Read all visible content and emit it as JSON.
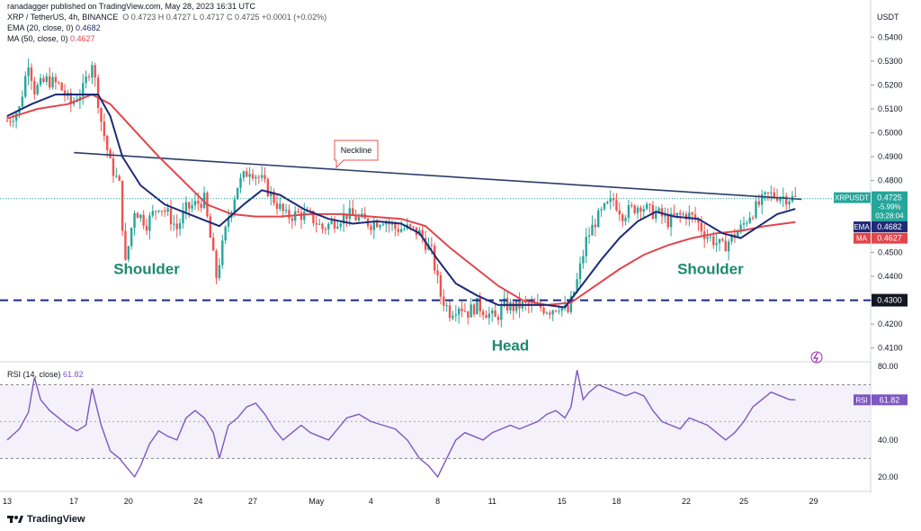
{
  "header": {
    "published": "ranadagger published on TradingView.com, May 28, 2023 16:31 UTC",
    "symbol_line": "XRP / TetherUS, 4h, BINANCE",
    "ohlc": "O 0.4723  H 0.4727  L 0.4717  C 0.4725  +0.0001 (+0.02%)",
    "ema_label": "EMA (20, close, 0)",
    "ema_value": "0.4682",
    "ma_label": "MA (50, close, 0)",
    "ma_value": "0.4627",
    "rsi_label": "RSI (14, close)",
    "rsi_value": "61.82",
    "currency": "USDT"
  },
  "footer": {
    "brand": "TradingView"
  },
  "colors": {
    "up": "#26a69a",
    "down": "#ef5350",
    "ema": "#1e2a78",
    "ma": "#e0464b",
    "rsi": "#7e57c2",
    "neckline": "#2a3d6b",
    "support": "#1a2b80"
  },
  "chart_data": [
    {
      "type": "candlestick",
      "title": "XRP / TetherUS, 4h, BINANCE",
      "ylim": [
        0.405,
        0.548
      ],
      "yticks": [
        0.41,
        0.42,
        0.43,
        0.44,
        0.45,
        0.46,
        0.47,
        0.48,
        0.49,
        0.5,
        0.51,
        0.52,
        0.53,
        0.54
      ],
      "ytick_labels": [
        "0.4100",
        "0.4200",
        "0.4300",
        "0.4400",
        "0.4500",
        "0.4600",
        "0.4700",
        "0.4800",
        "0.4900",
        "0.5000",
        "0.5100",
        "0.5200",
        "0.5300",
        "0.5400"
      ],
      "xtick_labels": [
        "13",
        "17",
        "20",
        "24",
        "27",
        "May",
        "4",
        "8",
        "11",
        "15",
        "18",
        "22",
        "25",
        "29"
      ],
      "xtick_positions": [
        0,
        22,
        40,
        63,
        81,
        102,
        120,
        142,
        160,
        183,
        201,
        224,
        243,
        266
      ],
      "price_path": [
        [
          0,
          0.505
        ],
        [
          4,
          0.51
        ],
        [
          7,
          0.53
        ],
        [
          9,
          0.518
        ],
        [
          13,
          0.522
        ],
        [
          17,
          0.52
        ],
        [
          21,
          0.512
        ],
        [
          25,
          0.518
        ],
        [
          28,
          0.53
        ],
        [
          31,
          0.505
        ],
        [
          34,
          0.487
        ],
        [
          37,
          0.478
        ],
        [
          39,
          0.445
        ],
        [
          42,
          0.468
        ],
        [
          46,
          0.462
        ],
        [
          50,
          0.47
        ],
        [
          53,
          0.466
        ],
        [
          56,
          0.46
        ],
        [
          59,
          0.468
        ],
        [
          62,
          0.47
        ],
        [
          65,
          0.472
        ],
        [
          69,
          0.44
        ],
        [
          73,
          0.465
        ],
        [
          76,
          0.478
        ],
        [
          80,
          0.485
        ],
        [
          84,
          0.48
        ],
        [
          88,
          0.472
        ],
        [
          92,
          0.465
        ],
        [
          96,
          0.466
        ],
        [
          100,
          0.465
        ],
        [
          104,
          0.46
        ],
        [
          108,
          0.463
        ],
        [
          112,
          0.466
        ],
        [
          116,
          0.464
        ],
        [
          120,
          0.462
        ],
        [
          124,
          0.464
        ],
        [
          128,
          0.46
        ],
        [
          132,
          0.46
        ],
        [
          136,
          0.458
        ],
        [
          140,
          0.45
        ],
        [
          143,
          0.432
        ],
        [
          146,
          0.425
        ],
        [
          149,
          0.428
        ],
        [
          152,
          0.425
        ],
        [
          155,
          0.428
        ],
        [
          158,
          0.425
        ],
        [
          161,
          0.422
        ],
        [
          164,
          0.428
        ],
        [
          167,
          0.427
        ],
        [
          170,
          0.428
        ],
        [
          173,
          0.427
        ],
        [
          176,
          0.427
        ],
        [
          179,
          0.426
        ],
        [
          182,
          0.428
        ],
        [
          185,
          0.425
        ],
        [
          188,
          0.438
        ],
        [
          191,
          0.455
        ],
        [
          194,
          0.463
        ],
        [
          197,
          0.468
        ],
        [
          200,
          0.472
        ],
        [
          203,
          0.466
        ],
        [
          206,
          0.468
        ],
        [
          209,
          0.47
        ],
        [
          212,
          0.467
        ],
        [
          215,
          0.466
        ],
        [
          218,
          0.463
        ],
        [
          221,
          0.465
        ],
        [
          224,
          0.466
        ],
        [
          227,
          0.464
        ],
        [
          230,
          0.458
        ],
        [
          233,
          0.455
        ],
        [
          236,
          0.452
        ],
        [
          239,
          0.456
        ],
        [
          242,
          0.46
        ],
        [
          245,
          0.466
        ],
        [
          248,
          0.47
        ],
        [
          251,
          0.474
        ],
        [
          254,
          0.474
        ],
        [
          257,
          0.473
        ],
        [
          260,
          0.4725
        ]
      ],
      "ema": {
        "name": "EMA",
        "label": "EMA",
        "value": 0.4682,
        "points": [
          [
            0,
            0.507
          ],
          [
            8,
            0.512
          ],
          [
            16,
            0.516
          ],
          [
            24,
            0.516
          ],
          [
            30,
            0.516
          ],
          [
            34,
            0.507
          ],
          [
            38,
            0.49
          ],
          [
            44,
            0.478
          ],
          [
            52,
            0.47
          ],
          [
            60,
            0.466
          ],
          [
            70,
            0.461
          ],
          [
            78,
            0.47
          ],
          [
            84,
            0.476
          ],
          [
            90,
            0.474
          ],
          [
            98,
            0.468
          ],
          [
            106,
            0.464
          ],
          [
            114,
            0.462
          ],
          [
            122,
            0.463
          ],
          [
            130,
            0.462
          ],
          [
            136,
            0.458
          ],
          [
            142,
            0.447
          ],
          [
            148,
            0.437
          ],
          [
            155,
            0.432
          ],
          [
            162,
            0.428
          ],
          [
            170,
            0.428
          ],
          [
            178,
            0.428
          ],
          [
            184,
            0.427
          ],
          [
            190,
            0.437
          ],
          [
            196,
            0.447
          ],
          [
            202,
            0.456
          ],
          [
            208,
            0.463
          ],
          [
            214,
            0.467
          ],
          [
            220,
            0.465
          ],
          [
            228,
            0.464
          ],
          [
            236,
            0.458
          ],
          [
            242,
            0.456
          ],
          [
            248,
            0.461
          ],
          [
            254,
            0.466
          ],
          [
            260,
            0.4682
          ]
        ]
      },
      "ma": {
        "name": "MA",
        "label": "MA",
        "value": 0.4627,
        "points": [
          [
            0,
            0.506
          ],
          [
            10,
            0.51
          ],
          [
            20,
            0.512
          ],
          [
            28,
            0.516
          ],
          [
            34,
            0.512
          ],
          [
            42,
            0.501
          ],
          [
            50,
            0.49
          ],
          [
            58,
            0.48
          ],
          [
            66,
            0.47
          ],
          [
            74,
            0.466
          ],
          [
            82,
            0.465
          ],
          [
            90,
            0.465
          ],
          [
            100,
            0.466
          ],
          [
            110,
            0.466
          ],
          [
            120,
            0.465
          ],
          [
            130,
            0.464
          ],
          [
            138,
            0.461
          ],
          [
            146,
            0.452
          ],
          [
            154,
            0.444
          ],
          [
            162,
            0.436
          ],
          [
            170,
            0.43
          ],
          [
            178,
            0.428
          ],
          [
            186,
            0.429
          ],
          [
            194,
            0.436
          ],
          [
            202,
            0.443
          ],
          [
            210,
            0.449
          ],
          [
            218,
            0.453
          ],
          [
            226,
            0.456
          ],
          [
            234,
            0.458
          ],
          [
            242,
            0.459
          ],
          [
            250,
            0.461
          ],
          [
            260,
            0.4627
          ]
        ]
      },
      "neckline": {
        "label": "Neckline",
        "from": [
          22,
          0.4917
        ],
        "to": [
          262,
          0.4722
        ]
      },
      "support": {
        "value": 0.43,
        "label": "0.4300"
      },
      "annotations": [
        {
          "text": "Shoulder",
          "x": 46,
          "y": 0.441
        },
        {
          "text": "Head",
          "x": 166,
          "y": 0.409
        },
        {
          "text": "Shoulder",
          "x": 232,
          "y": 0.441
        }
      ],
      "last_price": {
        "symbol": "XRPUSDT",
        "price": "0.4725",
        "change": "-5.99%",
        "countdown": "03:28:04"
      }
    },
    {
      "type": "line",
      "title": "RSI (14, close)",
      "ylim": [
        15,
        82
      ],
      "yticks": [
        20,
        40,
        60,
        80
      ],
      "ytick_labels": [
        "20.00",
        "40.00",
        "",
        "80.00"
      ],
      "band": [
        30,
        70
      ],
      "series": [
        {
          "name": "RSI",
          "value": 61.82,
          "points": [
            [
              0,
              40
            ],
            [
              4,
              46
            ],
            [
              7,
              55
            ],
            [
              9,
              74
            ],
            [
              11,
              62
            ],
            [
              14,
              56
            ],
            [
              17,
              52
            ],
            [
              20,
              48
            ],
            [
              23,
              45
            ],
            [
              26,
              48
            ],
            [
              28,
              68
            ],
            [
              31,
              48
            ],
            [
              34,
              34
            ],
            [
              37,
              30
            ],
            [
              40,
              24
            ],
            [
              42,
              20
            ],
            [
              44,
              26
            ],
            [
              47,
              38
            ],
            [
              50,
              45
            ],
            [
              53,
              42
            ],
            [
              56,
              40
            ],
            [
              59,
              52
            ],
            [
              62,
              56
            ],
            [
              65,
              52
            ],
            [
              68,
              44
            ],
            [
              70,
              30
            ],
            [
              73,
              48
            ],
            [
              76,
              52
            ],
            [
              79,
              58
            ],
            [
              82,
              60
            ],
            [
              85,
              54
            ],
            [
              88,
              46
            ],
            [
              91,
              40
            ],
            [
              94,
              44
            ],
            [
              97,
              48
            ],
            [
              100,
              44
            ],
            [
              103,
              42
            ],
            [
              106,
              40
            ],
            [
              109,
              46
            ],
            [
              112,
              52
            ],
            [
              116,
              54
            ],
            [
              120,
              50
            ],
            [
              124,
              48
            ],
            [
              128,
              46
            ],
            [
              132,
              40
            ],
            [
              136,
              30
            ],
            [
              139,
              26
            ],
            [
              142,
              20
            ],
            [
              145,
              30
            ],
            [
              148,
              40
            ],
            [
              151,
              44
            ],
            [
              154,
              42
            ],
            [
              157,
              40
            ],
            [
              160,
              44
            ],
            [
              163,
              46
            ],
            [
              166,
              48
            ],
            [
              169,
              46
            ],
            [
              172,
              48
            ],
            [
              175,
              50
            ],
            [
              178,
              54
            ],
            [
              181,
              56
            ],
            [
              184,
              52
            ],
            [
              186,
              58
            ],
            [
              188,
              78
            ],
            [
              190,
              62
            ],
            [
              192,
              66
            ],
            [
              195,
              70
            ],
            [
              198,
              68
            ],
            [
              201,
              66
            ],
            [
              204,
              64
            ],
            [
              207,
              66
            ],
            [
              210,
              64
            ],
            [
              213,
              56
            ],
            [
              216,
              50
            ],
            [
              219,
              48
            ],
            [
              222,
              46
            ],
            [
              225,
              52
            ],
            [
              228,
              50
            ],
            [
              231,
              48
            ],
            [
              234,
              44
            ],
            [
              237,
              40
            ],
            [
              240,
              44
            ],
            [
              243,
              50
            ],
            [
              246,
              58
            ],
            [
              249,
              62
            ],
            [
              252,
              66
            ],
            [
              255,
              64
            ],
            [
              258,
              62
            ],
            [
              260,
              61.82
            ]
          ]
        }
      ]
    }
  ]
}
